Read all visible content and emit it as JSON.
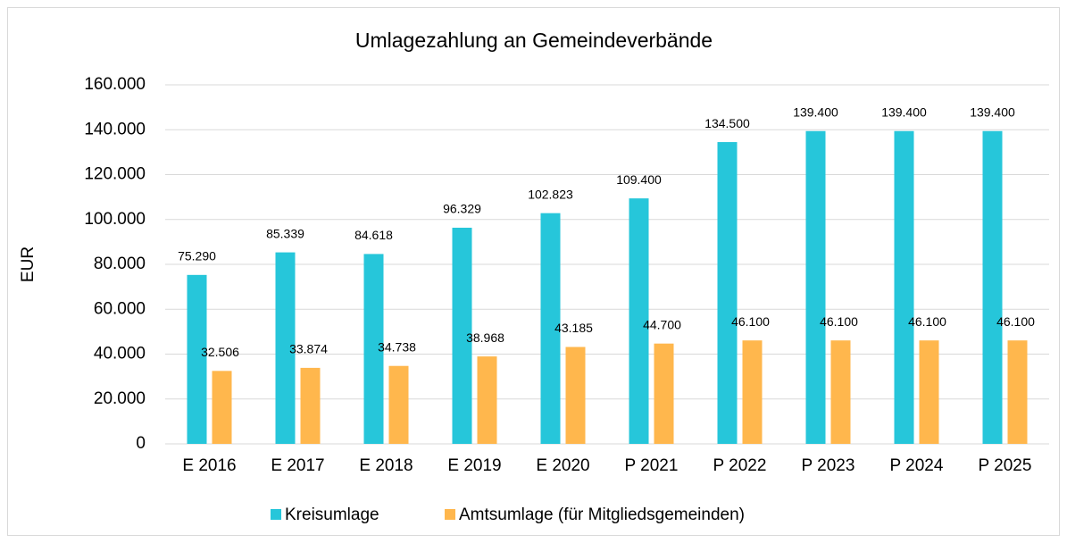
{
  "chart_data": {
    "type": "bar",
    "title": "Umlagezahlung an Gemeindeverbände",
    "y_label": "EUR",
    "categories": [
      "E 2016",
      "E 2017",
      "E 2018",
      "E 2019",
      "E 2020",
      "P 2021",
      "P 2022",
      "P 2023",
      "P 2024",
      "P 2025"
    ],
    "series": [
      {
        "name": "Kreisumlage",
        "color": "#26c6da",
        "values": [
          75290,
          85339,
          84618,
          96329,
          102823,
          109400,
          134500,
          139400,
          139400,
          139400
        ],
        "value_labels": [
          "75.290",
          "85.339",
          "84.618",
          "96.329",
          "102.823",
          "109.400",
          "134.500",
          "139.400",
          "139.400",
          "139.400"
        ]
      },
      {
        "name": "Amtsumlage (für Mitgliedsgemeinden)",
        "color": "#ffb74d",
        "values": [
          32506,
          33874,
          34738,
          38968,
          43185,
          44700,
          46100,
          46100,
          46100,
          46100
        ],
        "value_labels": [
          "32.506",
          "33.874",
          "34.738",
          "38.968",
          "43.185",
          "44.700",
          "46.100",
          "46.100",
          "46.100",
          "46.100"
        ]
      }
    ],
    "ylim": [
      0,
      160000
    ],
    "yticks": [
      0,
      {
        "value": 20000,
        "label": "20.000"
      },
      {
        "value": 40000,
        "label": "40.000"
      },
      {
        "value": 60000,
        "label": "60.000"
      },
      {
        "value": 80000,
        "label": "80.000"
      },
      {
        "value": 100000,
        "label": "100.000"
      },
      {
        "value": 120000,
        "label": "120.000"
      },
      {
        "value": 140000,
        "label": "140.000"
      },
      {
        "value": 160000,
        "label": "160.000"
      }
    ],
    "grid": true,
    "legend": "bottom"
  }
}
